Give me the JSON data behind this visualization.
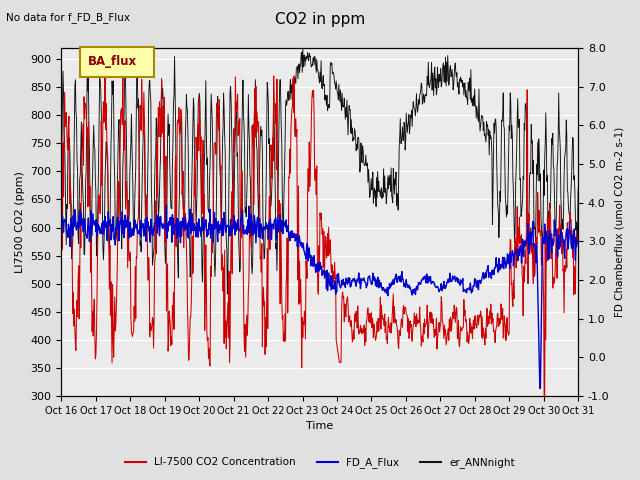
{
  "title": "CO2 in ppm",
  "top_left_text": "No data for f_FD_B_Flux",
  "legend_box_text": "BA_flux",
  "xlabel": "Time",
  "ylabel_left": "LI7500 CO2 (ppm)",
  "ylabel_right": "FD Chamberflux (umol CO2 m-2 s-1)",
  "ylim_left": [
    300,
    920
  ],
  "ylim_right": [
    -1.0,
    8.0
  ],
  "yticks_left": [
    300,
    350,
    400,
    450,
    500,
    550,
    600,
    650,
    700,
    750,
    800,
    850,
    900
  ],
  "yticks_right": [
    -1.0,
    0.0,
    1.0,
    2.0,
    3.0,
    4.0,
    5.0,
    6.0,
    7.0,
    8.0
  ],
  "xtick_labels": [
    "Oct 16",
    "Oct 17",
    "Oct 18",
    "Oct 19",
    "Oct 20",
    "Oct 21",
    "Oct 22",
    "Oct 23",
    "Oct 24",
    "Oct 25",
    "Oct 26",
    "Oct 27",
    "Oct 28",
    "Oct 29",
    "Oct 30",
    "Oct 31"
  ],
  "color_red": "#cc0000",
  "color_blue": "#0000cc",
  "color_black": "#111111",
  "color_legend_bg": "#ffffaa",
  "color_legend_border": "#aa8800",
  "background_color": "#e0e0e0",
  "plot_bg_color": "#ebebeb",
  "grid_color": "#ffffff",
  "seed": 42
}
